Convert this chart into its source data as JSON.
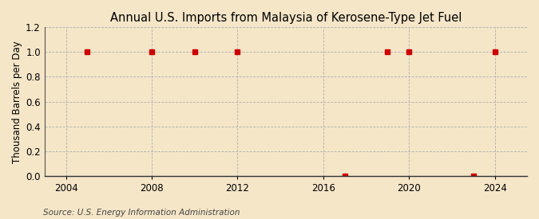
{
  "title": "Annual U.S. Imports from Malaysia of Kerosene-Type Jet Fuel",
  "ylabel": "Thousand Barrels per Day",
  "source": "Source: U.S. Energy Information Administration",
  "background_color": "#f5e6c8",
  "plot_bg_color": "#f5e6c8",
  "x_years": [
    2005,
    2008,
    2010,
    2012,
    2017,
    2019,
    2020,
    2023,
    2024
  ],
  "y_values": [
    1.0,
    1.0,
    1.0,
    1.0,
    0.005,
    1.0,
    1.0,
    0.005,
    1.0
  ],
  "xlim": [
    2003.0,
    2025.5
  ],
  "ylim": [
    0.0,
    1.2
  ],
  "yticks": [
    0.0,
    0.2,
    0.4,
    0.6,
    0.8,
    1.0,
    1.2
  ],
  "xticks": [
    2004,
    2008,
    2012,
    2016,
    2020,
    2024
  ],
  "marker_color": "#cc0000",
  "marker_size": 4,
  "grid_color": "#aaaaaa",
  "title_fontsize": 10.5,
  "axis_fontsize": 8.5,
  "source_fontsize": 7.5
}
